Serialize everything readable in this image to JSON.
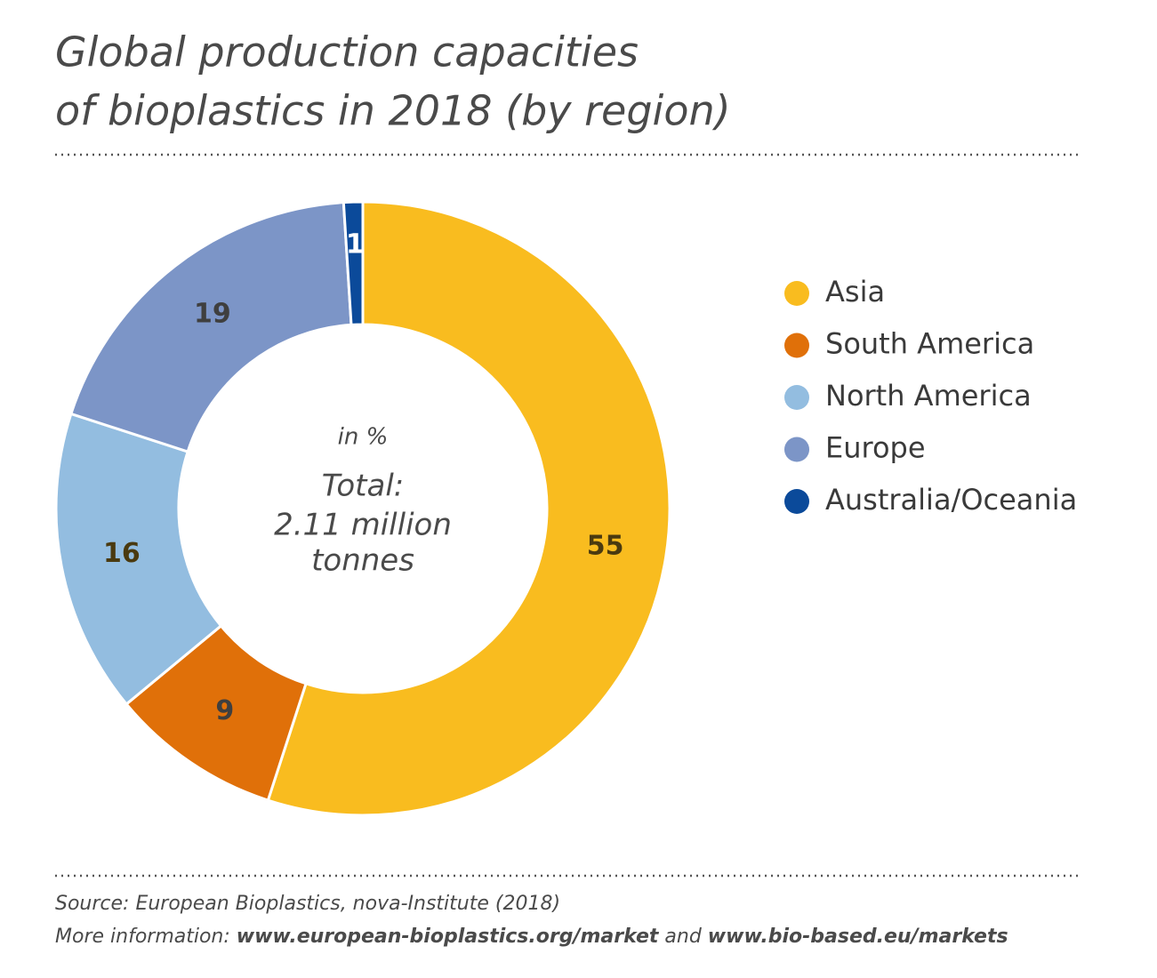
{
  "chart_data": {
    "type": "donut",
    "title": [
      "Global production capacities",
      "of bioplastics in 2018 (by region)"
    ],
    "categories": [
      "Asia",
      "South America",
      "North America",
      "Europe",
      "Australia/Oceania"
    ],
    "values": [
      55,
      9,
      16,
      19,
      1
    ],
    "colors": [
      "#f9bc1f",
      "#e07009",
      "#93bde0",
      "#7c95c7",
      "#0b4a9a"
    ],
    "center_label": "in %",
    "total_label": [
      "Total:",
      "2.11 million",
      "tonnes"
    ],
    "source": "Source: European Bioplastics, nova-Institute (2018)",
    "more_info": [
      "More information: ",
      "www.european-bioplastics.org/market",
      " and ",
      "www.bio-based.eu/markets"
    ]
  }
}
